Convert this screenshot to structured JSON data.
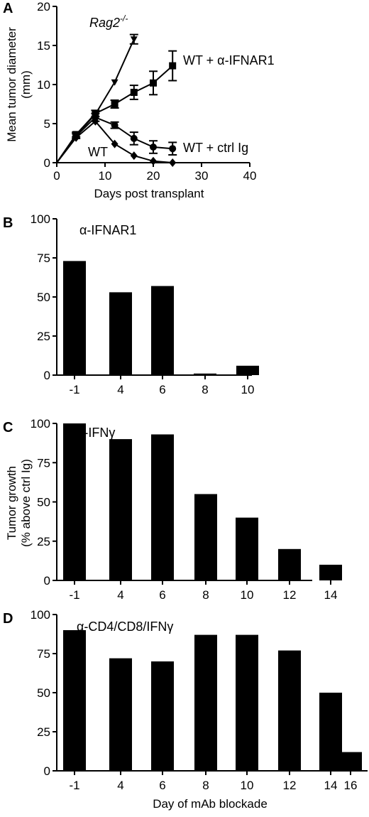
{
  "chart_data": [
    {
      "panel": "A",
      "type": "line",
      "xlabel": "Days post transplant",
      "ylabel": "Mean tumor diameter\n(mm)",
      "xlim": [
        0,
        40
      ],
      "ylim": [
        0,
        20
      ],
      "xticks": [
        0,
        10,
        20,
        30,
        40
      ],
      "yticks": [
        0,
        5,
        10,
        15,
        20
      ],
      "grid": false,
      "legend": "none (series labeled inline)",
      "series": [
        {
          "name": "Rag2",
          "name_sup": "-/-",
          "marker": "triangle-down",
          "x": [
            0,
            4,
            8,
            12,
            16
          ],
          "y": [
            0,
            3.5,
            6.2,
            10.3,
            15.8
          ],
          "err": [
            0,
            0,
            0,
            0,
            0.6
          ]
        },
        {
          "name": "WT + α-IFNAR1",
          "marker": "square",
          "x": [
            0,
            4,
            8,
            12,
            16,
            20,
            24
          ],
          "y": [
            0,
            3.6,
            6.3,
            7.5,
            9.0,
            10.2,
            12.4
          ],
          "err": [
            0,
            0.3,
            0.4,
            0.5,
            0.9,
            1.5,
            1.9
          ]
        },
        {
          "name": "WT + ctrl Ig",
          "marker": "circle",
          "x": [
            0,
            4,
            8,
            12,
            16,
            20,
            24
          ],
          "y": [
            0,
            3.4,
            5.8,
            4.8,
            3.1,
            2.0,
            1.8
          ],
          "err": [
            0,
            0.3,
            0.5,
            0.4,
            0.8,
            0.8,
            0.8
          ]
        },
        {
          "name": "WT",
          "marker": "diamond",
          "x": [
            0,
            4,
            8,
            12,
            16,
            20,
            24
          ],
          "y": [
            0,
            3.2,
            5.3,
            2.4,
            0.9,
            0.2,
            0
          ],
          "err": [
            0,
            0,
            0,
            0,
            0,
            0,
            0
          ]
        }
      ]
    },
    {
      "panel": "B",
      "type": "bar",
      "title": "α-IFNAR1",
      "categories": [
        "-1",
        "4",
        "6",
        "8",
        "10"
      ],
      "values": [
        73,
        53,
        57,
        1,
        6
      ],
      "ylim": [
        0,
        100
      ],
      "yticks": [
        0,
        25,
        50,
        75,
        100
      ]
    },
    {
      "panel": "C",
      "type": "bar",
      "title": "α-IFNγ",
      "ylabel": "Tumor growth\n(% above ctrl Ig)",
      "categories": [
        "-1",
        "4",
        "6",
        "8",
        "10",
        "12",
        "14"
      ],
      "values": [
        100,
        90,
        93,
        55,
        40,
        20,
        10
      ],
      "ylim": [
        0,
        100
      ],
      "yticks": [
        0,
        25,
        50,
        75,
        100
      ]
    },
    {
      "panel": "D",
      "type": "bar",
      "title": "α-CD4/CD8/IFNγ",
      "xlabel": "Day of mAb blockade",
      "categories": [
        "-1",
        "4",
        "6",
        "8",
        "10",
        "12",
        "14",
        "16"
      ],
      "values": [
        90,
        72,
        70,
        87,
        87,
        77,
        50,
        12
      ],
      "ylim": [
        0,
        100
      ],
      "yticks": [
        0,
        25,
        50,
        75,
        100
      ]
    }
  ]
}
